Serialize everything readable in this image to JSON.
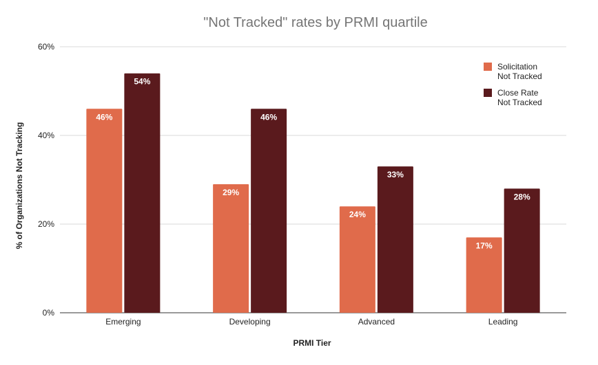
{
  "chart_data": {
    "type": "bar",
    "title": "\"Not Tracked\" rates by PRMI quartile",
    "xlabel": "PRMI Tier",
    "ylabel": "% of Organizations Not Tracking",
    "categories": [
      "Emerging",
      "Developing",
      "Advanced",
      "Leading"
    ],
    "ylim": [
      0,
      60
    ],
    "yticks": [
      "0%",
      "20%",
      "40%",
      "60%"
    ],
    "ytick_values": [
      0,
      20,
      40,
      60
    ],
    "grid": true,
    "legend_position": "top-right",
    "series": [
      {
        "name_lines": [
          "Solicitation",
          "Not Tracked"
        ],
        "color": "#E06B4B",
        "values": [
          46,
          29,
          24,
          17
        ],
        "labels": [
          "46%",
          "29%",
          "24%",
          "17%"
        ]
      },
      {
        "name_lines": [
          "Close Rate",
          "Not Tracked"
        ],
        "color": "#5A1A1D",
        "values": [
          54,
          46,
          33,
          28
        ],
        "labels": [
          "54%",
          "46%",
          "33%",
          "28%"
        ]
      }
    ]
  }
}
